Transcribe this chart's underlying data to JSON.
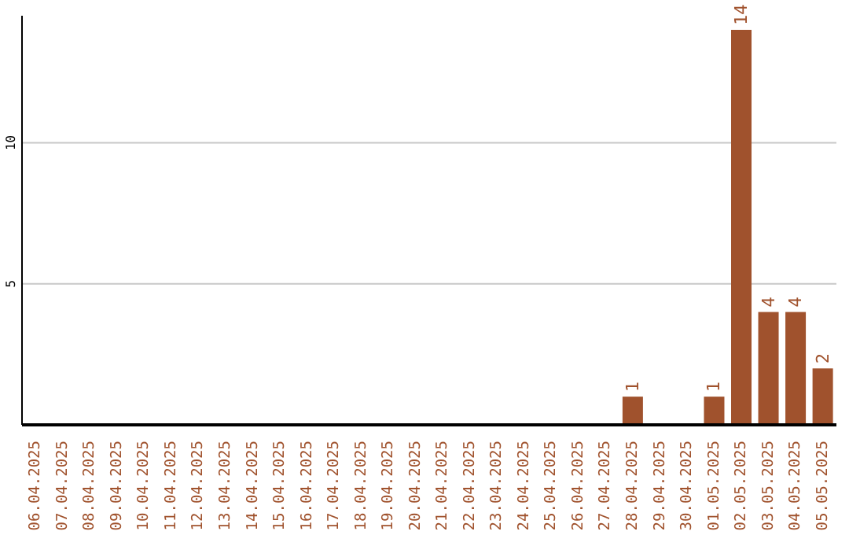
{
  "chart_data": {
    "type": "bar",
    "categories": [
      "06.04.2025",
      "07.04.2025",
      "08.04.2025",
      "09.04.2025",
      "10.04.2025",
      "11.04.2025",
      "12.04.2025",
      "13.04.2025",
      "14.04.2025",
      "15.04.2025",
      "16.04.2025",
      "17.04.2025",
      "18.04.2025",
      "19.04.2025",
      "20.04.2025",
      "21.04.2025",
      "22.04.2025",
      "23.04.2025",
      "24.04.2025",
      "25.04.2025",
      "26.04.2025",
      "27.04.2025",
      "28.04.2025",
      "29.04.2025",
      "30.04.2025",
      "01.05.2025",
      "02.05.2025",
      "03.05.2025",
      "04.05.2025",
      "05.05.2025"
    ],
    "values": [
      0,
      0,
      0,
      0,
      0,
      0,
      0,
      0,
      0,
      0,
      0,
      0,
      0,
      0,
      0,
      0,
      0,
      0,
      0,
      0,
      0,
      0,
      1,
      0,
      0,
      1,
      14,
      4,
      4,
      2
    ],
    "value_labels": [
      null,
      null,
      null,
      null,
      null,
      null,
      null,
      null,
      null,
      null,
      null,
      null,
      null,
      null,
      null,
      null,
      null,
      null,
      null,
      null,
      null,
      null,
      "1",
      null,
      null,
      "1",
      "14",
      "4",
      "4",
      "2"
    ],
    "color": "#a0522d",
    "ylim": [
      0,
      14.5
    ],
    "yticks": [
      5,
      10
    ],
    "grid": "y",
    "legend": false
  }
}
